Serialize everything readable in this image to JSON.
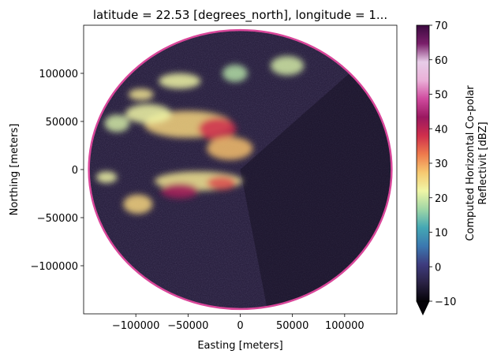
{
  "chart_data": {
    "type": "heatmap",
    "title": "latitude = 22.53 [degrees_north], longitude = 1...",
    "xlabel": "Easting [meters]",
    "ylabel": "Northing [meters]",
    "xlim": [
      -150000,
      150000
    ],
    "ylim": [
      -150000,
      150000
    ],
    "xticks": [
      {
        "value": -100000,
        "label": "−100000"
      },
      {
        "value": -50000,
        "label": "−50000"
      },
      {
        "value": 0,
        "label": "0"
      },
      {
        "value": 50000,
        "label": "50000"
      },
      {
        "value": 100000,
        "label": "100000"
      }
    ],
    "yticks": [
      {
        "value": 100000,
        "label": "100000"
      },
      {
        "value": 50000,
        "label": "50000"
      },
      {
        "value": 0,
        "label": "0"
      },
      {
        "value": -50000,
        "label": "−50000"
      },
      {
        "value": -100000,
        "label": "−100000"
      }
    ],
    "radar_range_m": 145000,
    "ring_color": "#d9479a",
    "background_color": "#2b2241",
    "colorbar": {
      "label_line1": "Computed Horizontal Co-polar",
      "label_line2": "Reflectivit [dBZ]",
      "vmin": -10,
      "vmax": 70,
      "extend": "min",
      "ticks": [
        {
          "value": 70,
          "label": "70"
        },
        {
          "value": 60,
          "label": "60"
        },
        {
          "value": 50,
          "label": "50"
        },
        {
          "value": 40,
          "label": "40"
        },
        {
          "value": 30,
          "label": "30"
        },
        {
          "value": 20,
          "label": "20"
        },
        {
          "value": 10,
          "label": "10"
        },
        {
          "value": 0,
          "label": "0"
        },
        {
          "value": -10,
          "label": "−10"
        }
      ],
      "colormap": [
        "#050308",
        "#2a2244",
        "#3e3c7e",
        "#3b78b0",
        "#44a8b4",
        "#9fd6a6",
        "#f0f6a6",
        "#f6c870",
        "#ee7a4c",
        "#cf2e4c",
        "#9a1860",
        "#cf4a9e",
        "#eab0d8",
        "#e8cde8",
        "#7a1f6a",
        "#3b0a40"
      ]
    },
    "echo_regions": [
      {
        "cx": -50000,
        "cy": 47000,
        "rx": 42000,
        "ry": 14000,
        "dbz": 26
      },
      {
        "cx": -22000,
        "cy": 42000,
        "rx": 18000,
        "ry": 12000,
        "dbz": 38
      },
      {
        "cx": -88000,
        "cy": 58000,
        "rx": 22000,
        "ry": 10000,
        "dbz": 22
      },
      {
        "cx": -118000,
        "cy": 48000,
        "rx": 12000,
        "ry": 9000,
        "dbz": 20
      },
      {
        "cx": -10000,
        "cy": 22000,
        "rx": 22000,
        "ry": 12000,
        "dbz": 28
      },
      {
        "cx": -58000,
        "cy": 92000,
        "rx": 20000,
        "ry": 8000,
        "dbz": 22
      },
      {
        "cx": -5000,
        "cy": 100000,
        "rx": 12000,
        "ry": 9000,
        "dbz": 18
      },
      {
        "cx": 45000,
        "cy": 108000,
        "rx": 16000,
        "ry": 10000,
        "dbz": 20
      },
      {
        "cx": -40000,
        "cy": -12000,
        "rx": 42000,
        "ry": 10000,
        "dbz": 24
      },
      {
        "cx": -58000,
        "cy": -22000,
        "rx": 18000,
        "ry": 8000,
        "dbz": 42
      },
      {
        "cx": -18000,
        "cy": -14000,
        "rx": 14000,
        "ry": 7000,
        "dbz": 36
      },
      {
        "cx": -98000,
        "cy": -36000,
        "rx": 14000,
        "ry": 10000,
        "dbz": 26
      },
      {
        "cx": -128000,
        "cy": -8000,
        "rx": 10000,
        "ry": 6000,
        "dbz": 22
      },
      {
        "cx": -95000,
        "cy": 78000,
        "rx": 12000,
        "ry": 6000,
        "dbz": 24
      }
    ]
  }
}
